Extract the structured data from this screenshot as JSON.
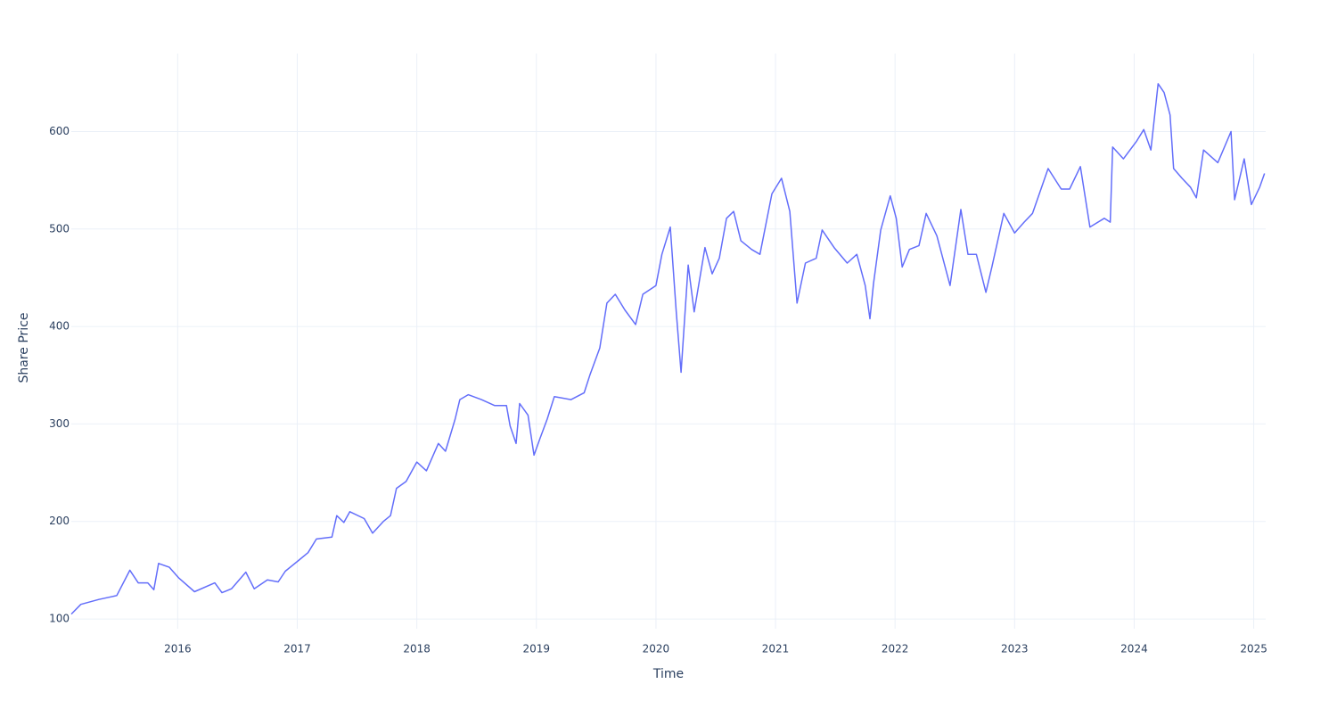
{
  "chart_data": {
    "type": "line",
    "xlabel": "Time",
    "ylabel": "Share Price",
    "x": [
      2015.11,
      2015.19,
      2015.34,
      2015.49,
      2015.6,
      2015.67,
      2015.75,
      2015.8,
      2015.84,
      2015.93,
      2016.01,
      2016.14,
      2016.31,
      2016.37,
      2016.45,
      2016.57,
      2016.64,
      2016.75,
      2016.84,
      2016.9,
      2017.01,
      2017.09,
      2017.16,
      2017.29,
      2017.33,
      2017.39,
      2017.44,
      2017.56,
      2017.63,
      2017.72,
      2017.78,
      2017.83,
      2017.91,
      2018.0,
      2018.08,
      2018.18,
      2018.24,
      2018.32,
      2018.36,
      2018.43,
      2018.54,
      2018.65,
      2018.75,
      2018.78,
      2018.83,
      2018.86,
      2018.93,
      2018.98,
      2019.03,
      2019.09,
      2019.15,
      2019.29,
      2019.4,
      2019.45,
      2019.53,
      2019.59,
      2019.66,
      2019.74,
      2019.83,
      2019.89,
      2020.0,
      2020.05,
      2020.12,
      2020.17,
      2020.21,
      2020.27,
      2020.32,
      2020.41,
      2020.47,
      2020.53,
      2020.59,
      2020.65,
      2020.71,
      2020.8,
      2020.87,
      2020.97,
      2021.05,
      2021.12,
      2021.18,
      2021.25,
      2021.34,
      2021.39,
      2021.49,
      2021.6,
      2021.68,
      2021.75,
      2021.79,
      2021.82,
      2021.88,
      2021.96,
      2022.01,
      2022.06,
      2022.12,
      2022.2,
      2022.26,
      2022.35,
      2022.46,
      2022.55,
      2022.61,
      2022.68,
      2022.76,
      2022.81,
      2022.91,
      2023.0,
      2023.08,
      2023.15,
      2023.28,
      2023.39,
      2023.46,
      2023.55,
      2023.63,
      2023.75,
      2023.8,
      2023.82,
      2023.91,
      2024.02,
      2024.08,
      2024.14,
      2024.2,
      2024.25,
      2024.3,
      2024.33,
      2024.4,
      2024.47,
      2024.52,
      2024.58,
      2024.7,
      2024.81,
      2024.84,
      2024.92,
      2024.98,
      2025.05,
      2025.09
    ],
    "series": [
      {
        "color": "#636efa",
        "values": [
          105,
          115,
          120,
          124,
          150,
          137,
          137,
          130,
          157,
          153,
          142,
          128,
          137,
          127,
          131,
          148,
          131,
          140,
          138,
          149,
          160,
          168,
          182,
          184,
          206,
          199,
          210,
          203,
          188,
          200,
          206,
          234,
          241,
          261,
          252,
          280,
          272,
          305,
          325,
          330,
          325,
          319,
          319,
          298,
          280,
          321,
          309,
          268,
          285,
          305,
          328,
          325,
          332,
          351,
          378,
          424,
          433,
          417,
          402,
          433,
          442,
          474,
          502,
          415,
          353,
          463,
          415,
          481,
          454,
          470,
          511,
          518,
          488,
          479,
          474,
          536,
          552,
          518,
          424,
          465,
          470,
          499,
          481,
          465,
          474,
          442,
          408,
          444,
          499,
          534,
          511,
          461,
          479,
          483,
          516,
          493,
          442,
          520,
          474,
          474,
          435,
          461,
          516,
          496,
          507,
          516,
          562,
          541,
          541,
          564,
          502,
          511,
          507,
          584,
          572,
          590,
          602,
          581,
          649,
          640,
          617,
          562,
          552,
          543,
          532,
          581,
          568,
          600,
          530,
          572,
          525,
          543,
          557
        ]
      }
    ],
    "xlim": [
      2015.11,
      2025.1
    ],
    "xticks": [
      2016,
      2017,
      2018,
      2019,
      2020,
      2021,
      2022,
      2023,
      2024,
      2025
    ],
    "ylim": [
      90,
      680
    ],
    "yticks": [
      100,
      200,
      300,
      400,
      500,
      600
    ],
    "grid": true
  }
}
